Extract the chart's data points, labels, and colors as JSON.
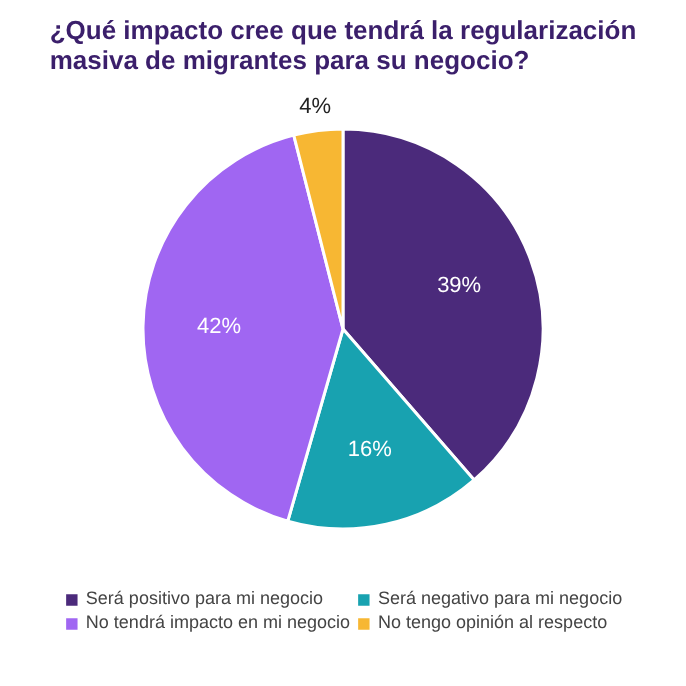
{
  "chart_data": {
    "type": "pie",
    "title": "¿Qué impacto cree que tendrá la regularización masiva de migrantes para su negocio?",
    "categories": [
      "Será positivo para mi negocio",
      "Será negativo para mi negocio",
      "No tendrá impacto en mi negocio",
      "No tengo opinión al respecto"
    ],
    "values": [
      39,
      16,
      42,
      4
    ],
    "colors": [
      "#4b2a7b",
      "#18a2b0",
      "#a066f2",
      "#f7b733"
    ],
    "value_labels": [
      "39%",
      "16%",
      "42%",
      "4%"
    ],
    "legend": "bottom"
  }
}
